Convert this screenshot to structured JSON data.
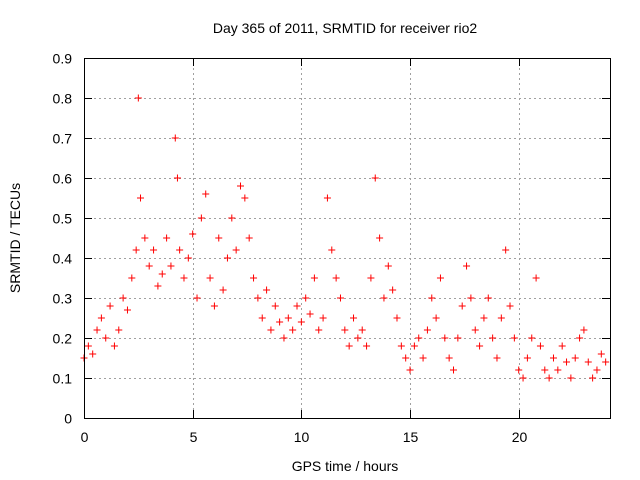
{
  "chart_data": {
    "type": "scatter",
    "title": "Day 365 of 2011, SRMTID for receiver rio2",
    "xlabel": "GPS time / hours",
    "ylabel": "SRMTID / TECUs",
    "xlim": [
      0,
      24.2
    ],
    "ylim": [
      0,
      0.9
    ],
    "xticks": [
      0,
      5,
      10,
      15,
      20
    ],
    "xtick_labels": [
      "0",
      "5",
      "10",
      "15",
      "20"
    ],
    "yticks": [
      0,
      0.1,
      0.2,
      0.3,
      0.4,
      0.5,
      0.6,
      0.7,
      0.8,
      0.9
    ],
    "ytick_labels": [
      "0",
      "0.1",
      "0.2",
      "0.3",
      "0.4",
      "0.5",
      "0.6",
      "0.7",
      "0.8",
      "0.9"
    ],
    "grid": true,
    "marker": "+",
    "series": [
      {
        "name": "SRMTID",
        "color": "#ff0000",
        "x": [
          0.0,
          0.2,
          0.4,
          0.6,
          0.8,
          1.0,
          1.2,
          1.4,
          1.6,
          1.8,
          2.0,
          2.2,
          2.4,
          2.5,
          2.6,
          2.8,
          3.0,
          3.2,
          3.4,
          3.6,
          3.8,
          4.0,
          4.2,
          4.3,
          4.4,
          4.6,
          4.8,
          5.0,
          5.2,
          5.4,
          5.6,
          5.8,
          6.0,
          6.2,
          6.4,
          6.6,
          6.8,
          7.0,
          7.2,
          7.4,
          7.6,
          7.8,
          8.0,
          8.2,
          8.4,
          8.6,
          8.8,
          9.0,
          9.2,
          9.4,
          9.6,
          9.8,
          10.0,
          10.2,
          10.4,
          10.6,
          10.8,
          11.0,
          11.2,
          11.4,
          11.6,
          11.8,
          12.0,
          12.2,
          12.4,
          12.6,
          12.8,
          13.0,
          13.2,
          13.4,
          13.6,
          13.8,
          14.0,
          14.2,
          14.4,
          14.6,
          14.8,
          15.0,
          15.2,
          15.4,
          15.6,
          15.8,
          16.0,
          16.2,
          16.4,
          16.6,
          16.8,
          17.0,
          17.2,
          17.4,
          17.6,
          17.8,
          18.0,
          18.2,
          18.4,
          18.6,
          18.8,
          19.0,
          19.2,
          19.4,
          19.6,
          19.8,
          20.0,
          20.2,
          20.4,
          20.6,
          20.8,
          21.0,
          21.2,
          21.4,
          21.6,
          21.8,
          22.0,
          22.2,
          22.4,
          22.6,
          22.8,
          23.0,
          23.2,
          23.4,
          23.6,
          23.8,
          24.0
        ],
        "y": [
          0.15,
          0.18,
          0.16,
          0.22,
          0.25,
          0.2,
          0.28,
          0.18,
          0.22,
          0.3,
          0.27,
          0.35,
          0.42,
          0.8,
          0.55,
          0.45,
          0.38,
          0.42,
          0.33,
          0.36,
          0.45,
          0.38,
          0.7,
          0.6,
          0.42,
          0.35,
          0.4,
          0.46,
          0.3,
          0.5,
          0.56,
          0.35,
          0.28,
          0.45,
          0.32,
          0.4,
          0.5,
          0.42,
          0.58,
          0.55,
          0.45,
          0.35,
          0.3,
          0.25,
          0.32,
          0.22,
          0.28,
          0.24,
          0.2,
          0.25,
          0.22,
          0.28,
          0.24,
          0.3,
          0.26,
          0.35,
          0.22,
          0.25,
          0.55,
          0.42,
          0.35,
          0.3,
          0.22,
          0.18,
          0.25,
          0.2,
          0.22,
          0.18,
          0.35,
          0.6,
          0.45,
          0.3,
          0.38,
          0.32,
          0.25,
          0.18,
          0.15,
          0.12,
          0.18,
          0.2,
          0.15,
          0.22,
          0.3,
          0.25,
          0.35,
          0.2,
          0.15,
          0.12,
          0.2,
          0.28,
          0.38,
          0.3,
          0.22,
          0.18,
          0.25,
          0.3,
          0.2,
          0.15,
          0.25,
          0.42,
          0.28,
          0.2,
          0.12,
          0.1,
          0.15,
          0.2,
          0.35,
          0.18,
          0.12,
          0.1,
          0.15,
          0.12,
          0.18,
          0.14,
          0.1,
          0.15,
          0.2,
          0.22,
          0.14,
          0.1,
          0.12,
          0.16,
          0.14
        ]
      }
    ]
  }
}
